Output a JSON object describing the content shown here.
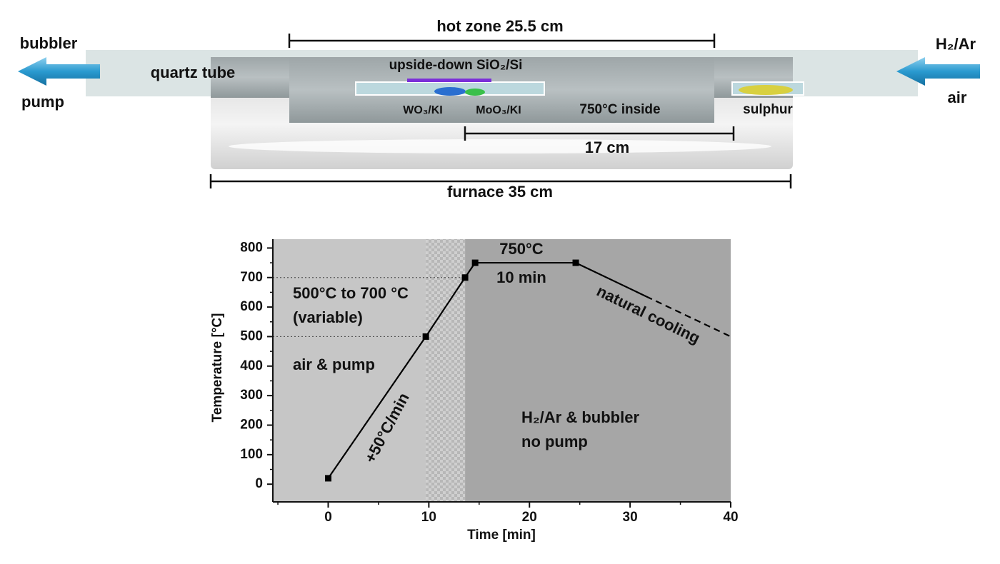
{
  "diagram": {
    "hot_zone": "hot zone 25.5 cm",
    "bubbler": "bubbler",
    "pump": "pump",
    "quartz_tube": "quartz tube",
    "substrate": "upside-down SiO₂/Si",
    "wo3": "WO₃/KI",
    "moo3": "MoO₃/KI",
    "inside_temp": "750°C inside",
    "sulphur": "sulphur",
    "distance": "17 cm",
    "furnace": "furnace 35 cm",
    "gas": "H₂/Ar",
    "air": "air"
  },
  "chart_data": {
    "type": "line",
    "x_label": "Time [min]",
    "y_label": "Temperature [°C]",
    "xlim": [
      -5.5,
      40
    ],
    "ylim": [
      -60,
      830
    ],
    "xticks": [
      0,
      10,
      20,
      30,
      40
    ],
    "xminorticks": [
      -5,
      5,
      15,
      25,
      35
    ],
    "yticks": [
      0,
      100,
      200,
      300,
      400,
      500,
      600,
      700,
      800
    ],
    "yminorticks": [
      50,
      150,
      250,
      350,
      450,
      550,
      650,
      750
    ],
    "grid": false,
    "regions": [
      {
        "x": [
          -5.5,
          9.7
        ],
        "color": "#c6c6c6"
      },
      {
        "x": [
          9.7,
          13.6
        ],
        "color": "checker"
      },
      {
        "x": [
          13.6,
          40
        ],
        "color": "#a6a6a6"
      }
    ],
    "hlines": [
      {
        "y": 500,
        "x_end": 9.7
      },
      {
        "y": 700,
        "x_end": 13.6
      }
    ],
    "series": [
      {
        "color": "#000000",
        "x": [
          0,
          9.7,
          13.6,
          14.6,
          24.6
        ],
        "values": [
          20,
          500,
          700,
          750,
          750
        ],
        "marker": "square",
        "dashed": false
      },
      {
        "color": "#000000",
        "x": [
          24.6,
          31.6
        ],
        "values": [
          750,
          636
        ],
        "dashed": false
      },
      {
        "color": "#000000",
        "x": [
          31.6,
          40
        ],
        "values": [
          636,
          500
        ],
        "dashed": true
      }
    ],
    "annotations": [
      "750°C",
      "10 min",
      "500°C to 700 °C",
      "(variable)",
      "air & pump",
      "+50°C/min",
      "natural cooling",
      "H₂/Ar & bubbler",
      "no pump"
    ]
  }
}
